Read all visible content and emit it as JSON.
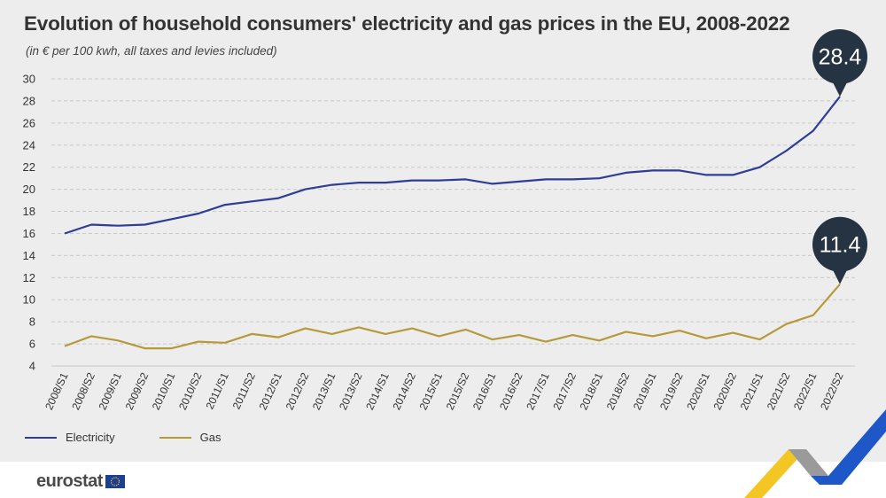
{
  "title": "Evolution of household consumers' electricity and gas prices in the EU, 2008-2022",
  "subtitle": "(in € per 100 kwh, all taxes and levies included)",
  "colors": {
    "electricity": "#2d3d98",
    "gas": "#b59a3a",
    "callout": "#253342",
    "grid": "#c9c9c9",
    "axis_text": "#333333"
  },
  "chart_data": {
    "type": "line",
    "x": [
      "2008/S1",
      "2008/S2",
      "2009/S1",
      "2009/S2",
      "2010/S1",
      "2010/S2",
      "2011/S1",
      "2011/S2",
      "2012/S1",
      "2012/S2",
      "2013/S1",
      "2013/S2",
      "2014/S1",
      "2014/S2",
      "2015/S1",
      "2015/S2",
      "2016/S1",
      "2016/S2",
      "2017/S1",
      "2017/S2",
      "2018/S1",
      "2018/S2",
      "2019/S1",
      "2019/S2",
      "2020/S1",
      "2020/S2",
      "2021/S1",
      "2021/S2",
      "2022/S1",
      "2022/S2"
    ],
    "series": [
      {
        "name": "Electricity",
        "values": [
          16.0,
          16.8,
          16.7,
          16.8,
          17.3,
          17.8,
          18.6,
          18.9,
          19.2,
          20.0,
          20.4,
          20.6,
          20.6,
          20.8,
          20.8,
          20.9,
          20.5,
          20.7,
          20.9,
          20.9,
          21.0,
          21.5,
          21.7,
          21.7,
          21.3,
          21.3,
          22.0,
          23.5,
          25.3,
          28.4
        ]
      },
      {
        "name": "Gas",
        "values": [
          5.8,
          6.7,
          6.3,
          5.6,
          5.6,
          6.2,
          6.1,
          6.9,
          6.6,
          7.4,
          6.9,
          7.5,
          6.9,
          7.4,
          6.7,
          7.3,
          6.4,
          6.8,
          6.2,
          6.8,
          6.3,
          7.1,
          6.7,
          7.2,
          6.5,
          7.0,
          6.4,
          7.8,
          8.6,
          11.4
        ]
      }
    ],
    "yticks": [
      4,
      6,
      8,
      10,
      12,
      14,
      16,
      18,
      20,
      22,
      24,
      26,
      28,
      30
    ],
    "ylim": [
      4,
      30
    ],
    "xlabel": "",
    "ylabel": "",
    "grid": true,
    "legend": "bottom-left",
    "callouts": [
      {
        "series": "Electricity",
        "label": "28.4"
      },
      {
        "series": "Gas",
        "label": "11.4"
      }
    ]
  },
  "legend": {
    "electricity": "Electricity",
    "gas": "Gas"
  },
  "footer": {
    "logo": "eurostat"
  }
}
